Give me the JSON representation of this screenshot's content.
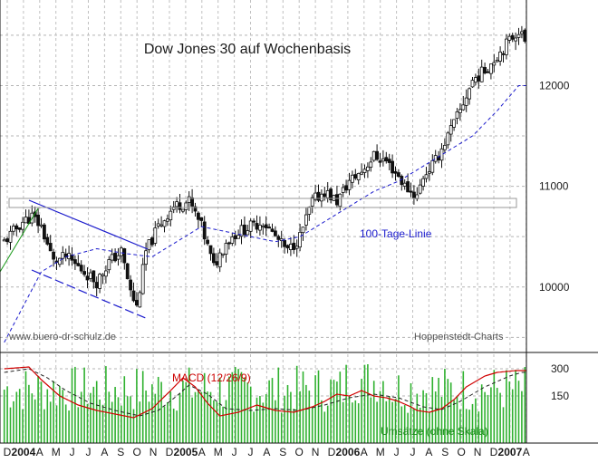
{
  "chart_data": [
    {
      "type": "candlestick",
      "title": "Dow Jones 30 auf Wochenbasis",
      "y_axis_labels": [
        "12000",
        "11000",
        "10000"
      ],
      "ylim": [
        9350,
        12850
      ],
      "x_labels": [
        "D",
        "2004",
        "A",
        "M",
        "J",
        "J",
        "A",
        "S",
        "O",
        "N",
        "D",
        "2005",
        "A",
        "M",
        "J",
        "J",
        "A",
        "S",
        "O",
        "N",
        "D",
        "2006",
        "A",
        "M",
        "J",
        "J",
        "A",
        "S",
        "O",
        "N",
        "D",
        "2007",
        "A"
      ],
      "x_label_bold": [
        false,
        true,
        false,
        false,
        false,
        false,
        false,
        false,
        false,
        false,
        false,
        true,
        false,
        false,
        false,
        false,
        false,
        false,
        false,
        false,
        false,
        true,
        false,
        false,
        false,
        false,
        false,
        false,
        false,
        false,
        false,
        true,
        false
      ],
      "weekly_close_keypoints": [
        [
          0,
          10450
        ],
        [
          6,
          10650
        ],
        [
          9,
          10700
        ],
        [
          12,
          10600
        ],
        [
          16,
          10250
        ],
        [
          20,
          10300
        ],
        [
          24,
          10200
        ],
        [
          30,
          10050
        ],
        [
          34,
          10250
        ],
        [
          38,
          10350
        ],
        [
          41,
          9950
        ],
        [
          43,
          9800
        ],
        [
          46,
          10350
        ],
        [
          50,
          10600
        ],
        [
          55,
          10800
        ],
        [
          60,
          10850
        ],
        [
          64,
          10600
        ],
        [
          68,
          10200
        ],
        [
          72,
          10450
        ],
        [
          76,
          10550
        ],
        [
          80,
          10600
        ],
        [
          84,
          10650
        ],
        [
          88,
          10500
        ],
        [
          92,
          10350
        ],
        [
          96,
          10500
        ],
        [
          100,
          10850
        ],
        [
          104,
          10950
        ],
        [
          108,
          10850
        ],
        [
          112,
          11050
        ],
        [
          116,
          11150
        ],
        [
          120,
          11300
        ],
        [
          124,
          11250
        ],
        [
          128,
          11100
        ],
        [
          130,
          11000
        ],
        [
          134,
          10900
        ],
        [
          136,
          11100
        ],
        [
          140,
          11250
        ],
        [
          144,
          11500
        ],
        [
          148,
          11750
        ],
        [
          152,
          12050
        ],
        [
          156,
          12150
        ],
        [
          160,
          12300
        ],
        [
          164,
          12450
        ],
        [
          167,
          12550
        ],
        [
          169,
          12450
        ]
      ],
      "moving_average_label": "100-Tage-Linie",
      "moving_average_keypoints": [
        [
          0,
          9450
        ],
        [
          6,
          9800
        ],
        [
          12,
          10150
        ],
        [
          20,
          10300
        ],
        [
          30,
          10380
        ],
        [
          40,
          10330
        ],
        [
          48,
          10300
        ],
        [
          56,
          10450
        ],
        [
          64,
          10600
        ],
        [
          72,
          10550
        ],
        [
          80,
          10500
        ],
        [
          88,
          10450
        ],
        [
          96,
          10500
        ],
        [
          104,
          10650
        ],
        [
          112,
          10800
        ],
        [
          120,
          10950
        ],
        [
          128,
          11050
        ],
        [
          136,
          11200
        ],
        [
          144,
          11350
        ],
        [
          152,
          11500
        ],
        [
          160,
          11750
        ],
        [
          167,
          12000
        ]
      ],
      "annotations": {
        "left_source": "www.buero-dr-schulz.de",
        "right_source": "Hoppenstedt-Charts"
      }
    },
    {
      "type": "line",
      "title": "MACD (12/26/9)",
      "y_axis_labels": [
        "300",
        "150"
      ],
      "volume_label": "Umsätze (ohne Skala)",
      "macd_keypoints": [
        [
          0,
          300
        ],
        [
          8,
          310
        ],
        [
          12,
          240
        ],
        [
          18,
          150
        ],
        [
          24,
          100
        ],
        [
          30,
          70
        ],
        [
          36,
          50
        ],
        [
          42,
          30
        ],
        [
          48,
          80
        ],
        [
          54,
          180
        ],
        [
          58,
          250
        ],
        [
          62,
          200
        ],
        [
          66,
          110
        ],
        [
          70,
          40
        ],
        [
          76,
          60
        ],
        [
          82,
          100
        ],
        [
          88,
          70
        ],
        [
          94,
          60
        ],
        [
          100,
          90
        ],
        [
          104,
          120
        ],
        [
          108,
          160
        ],
        [
          112,
          150
        ],
        [
          116,
          180
        ],
        [
          120,
          150
        ],
        [
          124,
          140
        ],
        [
          128,
          120
        ],
        [
          132,
          90
        ],
        [
          134,
          70
        ],
        [
          138,
          60
        ],
        [
          142,
          80
        ],
        [
          146,
          130
        ],
        [
          150,
          200
        ],
        [
          156,
          260
        ],
        [
          160,
          280
        ],
        [
          166,
          290
        ],
        [
          168,
          290
        ]
      ],
      "signal_keypoints": [
        [
          0,
          280
        ],
        [
          8,
          300
        ],
        [
          14,
          250
        ],
        [
          20,
          180
        ],
        [
          28,
          110
        ],
        [
          36,
          70
        ],
        [
          44,
          40
        ],
        [
          50,
          70
        ],
        [
          56,
          150
        ],
        [
          60,
          210
        ],
        [
          66,
          160
        ],
        [
          72,
          80
        ],
        [
          80,
          70
        ],
        [
          88,
          80
        ],
        [
          96,
          70
        ],
        [
          104,
          100
        ],
        [
          112,
          140
        ],
        [
          120,
          160
        ],
        [
          128,
          140
        ],
        [
          136,
          90
        ],
        [
          142,
          75
        ],
        [
          148,
          120
        ],
        [
          156,
          200
        ],
        [
          164,
          260
        ],
        [
          168,
          280
        ]
      ]
    }
  ]
}
